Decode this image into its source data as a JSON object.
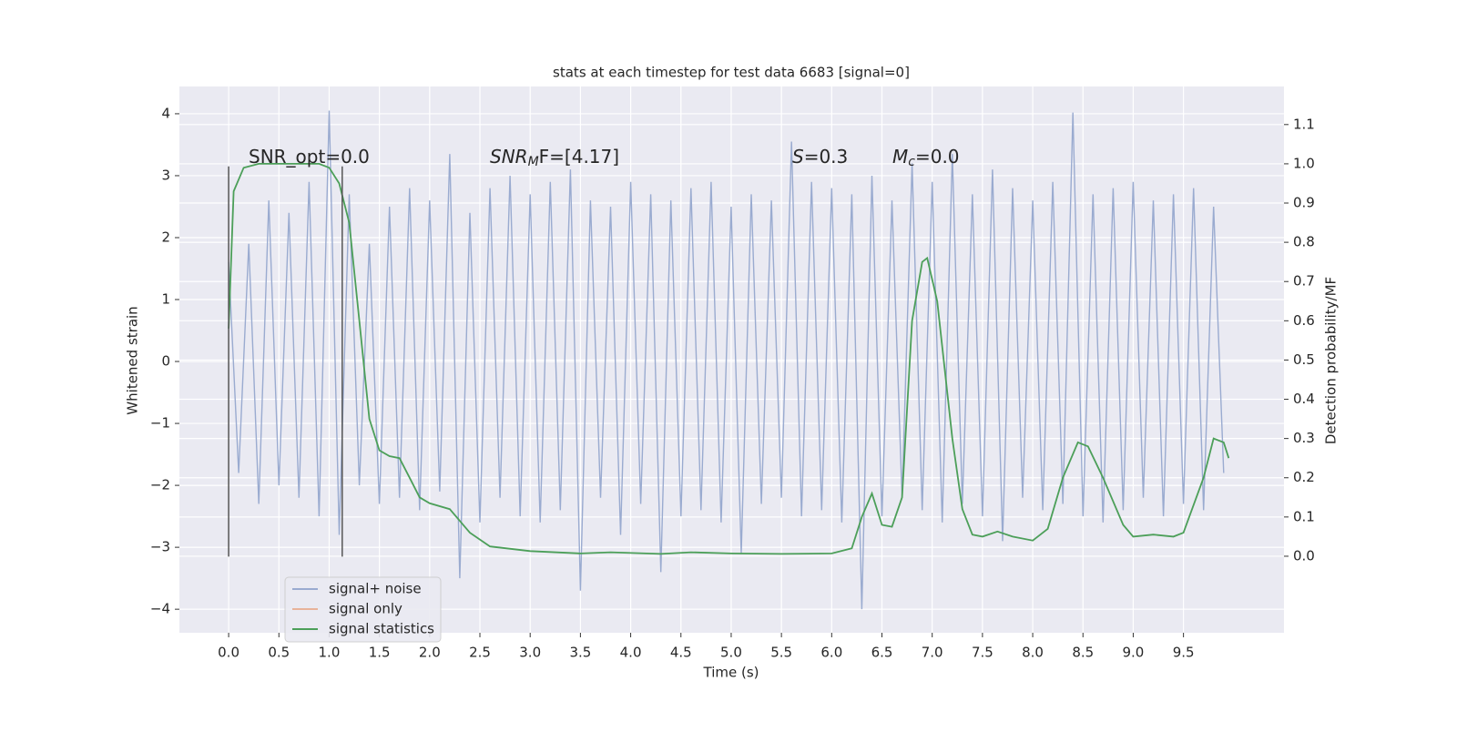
{
  "chart_data": {
    "type": "line",
    "title": "stats at each timestep for test data 6683 [signal=0]",
    "xlabel": "Time (s)",
    "ylabel": "Whitened strain",
    "y2label": "Detection probability/MF",
    "xlim": [
      -0.49,
      10.5
    ],
    "ylim": [
      -4.38,
      4.44
    ],
    "y2lim": [
      -0.195,
      1.197
    ],
    "xticks": [
      {
        "value": 0,
        "label": "0.0"
      },
      0.5,
      {
        "value": 1,
        "label": "1.0"
      },
      1.5,
      {
        "value": 2,
        "label": "2.0"
      },
      2.5,
      {
        "value": 3,
        "label": "3.0"
      },
      3.5,
      {
        "value": 4,
        "label": "4.0"
      },
      4.5,
      {
        "value": 5,
        "label": "5.0"
      },
      5.5,
      {
        "value": 6,
        "label": "6.0"
      },
      6.5,
      {
        "value": 7,
        "label": "7.0"
      },
      7.5,
      {
        "value": 8,
        "label": "8.0"
      },
      8.5,
      {
        "value": 9,
        "label": "9.0"
      },
      9.5
    ],
    "yticks": [
      {
        "value": -4,
        "label": "−4"
      },
      {
        "value": -3,
        "label": "−3"
      },
      {
        "value": -2,
        "label": "−2"
      },
      {
        "value": -1,
        "label": "−1"
      },
      0,
      1,
      2,
      3,
      4
    ],
    "y2ticks": [
      {
        "value": 0,
        "label": "0.0"
      },
      0.1,
      0.2,
      0.3,
      0.4,
      0.5,
      0.6,
      0.7,
      0.8,
      0.9,
      {
        "value": 1,
        "label": "1.0"
      },
      1.1
    ],
    "grid": true,
    "legend": "lower left",
    "series": [
      {
        "name": "signal+ noise",
        "color": "#9aabd0",
        "x": [
          0,
          0.1,
          0.2,
          0.3,
          0.4,
          0.5,
          0.6,
          0.7,
          0.8,
          0.9,
          1,
          1.1,
          1.2,
          1.3,
          1.4,
          1.5,
          1.6,
          1.7,
          1.8,
          1.9,
          2,
          2.1,
          2.2,
          2.3,
          2.4,
          2.5,
          2.6,
          2.7,
          2.8,
          2.9,
          3,
          3.1,
          3.2,
          3.3,
          3.4,
          3.5,
          3.6,
          3.7,
          3.8,
          3.9,
          4,
          4.1,
          4.2,
          4.3,
          4.4,
          4.5,
          4.6,
          4.7,
          4.8,
          4.9,
          5,
          5.1,
          5.2,
          5.3,
          5.4,
          5.5,
          5.6,
          5.7,
          5.8,
          5.9,
          6,
          6.1,
          6.2,
          6.3,
          6.4,
          6.5,
          6.6,
          6.7,
          6.8,
          6.9,
          7,
          7.1,
          7.2,
          7.3,
          7.4,
          7.5,
          7.6,
          7.7,
          7.8,
          7.9,
          8,
          8.1,
          8.2,
          8.3,
          8.4,
          8.5,
          8.6,
          8.7,
          8.8,
          8.9,
          9,
          9.1,
          9.2,
          9.3,
          9.4,
          9.5,
          9.6,
          9.7,
          9.8,
          9.9
        ],
        "values": [
          1.6,
          -1.8,
          1.9,
          -2.3,
          2.6,
          -2.0,
          2.4,
          -2.2,
          2.9,
          -2.5,
          4.05,
          -2.8,
          2.7,
          -2.0,
          1.9,
          -2.3,
          2.5,
          -2.2,
          2.8,
          -2.4,
          2.6,
          -2.1,
          3.35,
          -3.5,
          2.4,
          -2.6,
          2.8,
          -2.2,
          3.0,
          -2.5,
          2.7,
          -2.6,
          2.9,
          -2.4,
          3.1,
          -3.7,
          2.6,
          -2.2,
          2.5,
          -2.8,
          2.9,
          -2.3,
          2.7,
          -3.4,
          2.6,
          -2.5,
          2.8,
          -2.4,
          2.9,
          -2.6,
          2.5,
          -3.1,
          2.7,
          -2.3,
          2.6,
          -2.2,
          3.55,
          -2.5,
          2.9,
          -2.4,
          2.8,
          -2.6,
          2.7,
          -4.0,
          3.0,
          -2.5,
          2.6,
          -2.2,
          3.2,
          -2.4,
          2.9,
          -2.6,
          3.35,
          -2.3,
          2.7,
          -2.5,
          3.1,
          -2.9,
          2.8,
          -2.2,
          2.6,
          -2.4,
          2.9,
          -2.3,
          4.02,
          -2.5,
          2.7,
          -2.6,
          2.8,
          -2.4,
          2.9,
          -2.2,
          2.6,
          -2.5,
          2.7,
          -2.3,
          2.8,
          -2.4,
          2.5,
          -1.8
        ]
      },
      {
        "name": "signal only",
        "color": "#e8b39a",
        "x": [],
        "values": []
      },
      {
        "name": "signal statistics",
        "color": "#4c9f59",
        "axis": "y2",
        "x": [
          0,
          0.05,
          0.15,
          0.3,
          0.6,
          0.9,
          1,
          1.1,
          1.2,
          1.3,
          1.4,
          1.5,
          1.6,
          1.7,
          1.8,
          1.9,
          2,
          2.2,
          2.4,
          2.6,
          3,
          3.5,
          3.8,
          4.3,
          4.6,
          5,
          5.5,
          6,
          6.2,
          6.3,
          6.4,
          6.5,
          6.6,
          6.7,
          6.8,
          6.9,
          6.95,
          7.05,
          7.2,
          7.3,
          7.4,
          7.5,
          7.65,
          7.8,
          8,
          8.15,
          8.3,
          8.45,
          8.55,
          8.7,
          8.9,
          9,
          9.2,
          9.4,
          9.5,
          9.7,
          9.8,
          9.9,
          9.95
        ],
        "values": [
          0.58,
          0.93,
          0.99,
          1.0,
          1.0,
          1.0,
          0.99,
          0.95,
          0.85,
          0.6,
          0.35,
          0.27,
          0.255,
          0.25,
          0.2,
          0.15,
          0.135,
          0.12,
          0.06,
          0.025,
          0.013,
          0.007,
          0.01,
          0.006,
          0.01,
          0.007,
          0.006,
          0.007,
          0.02,
          0.1,
          0.16,
          0.08,
          0.075,
          0.15,
          0.6,
          0.75,
          0.76,
          0.65,
          0.3,
          0.12,
          0.055,
          0.05,
          0.063,
          0.05,
          0.04,
          0.07,
          0.2,
          0.29,
          0.28,
          0.2,
          0.08,
          0.05,
          0.055,
          0.05,
          0.06,
          0.2,
          0.3,
          0.29,
          0.25
        ]
      }
    ],
    "vlines": {
      "x": [
        0,
        1.13
      ],
      "ymin": -3.15,
      "ymax": 3.15,
      "color": "#555555"
    },
    "annotations": [
      {
        "rest": "SNR_opt=0.0"
      },
      {
        "main": "SNR",
        "sub": "M",
        "rest": "F=[4.17]"
      },
      {
        "main": "S",
        "rest": "=0.3"
      },
      {
        "main": "M",
        "sub": "c",
        "rest": "=0.0"
      }
    ]
  }
}
